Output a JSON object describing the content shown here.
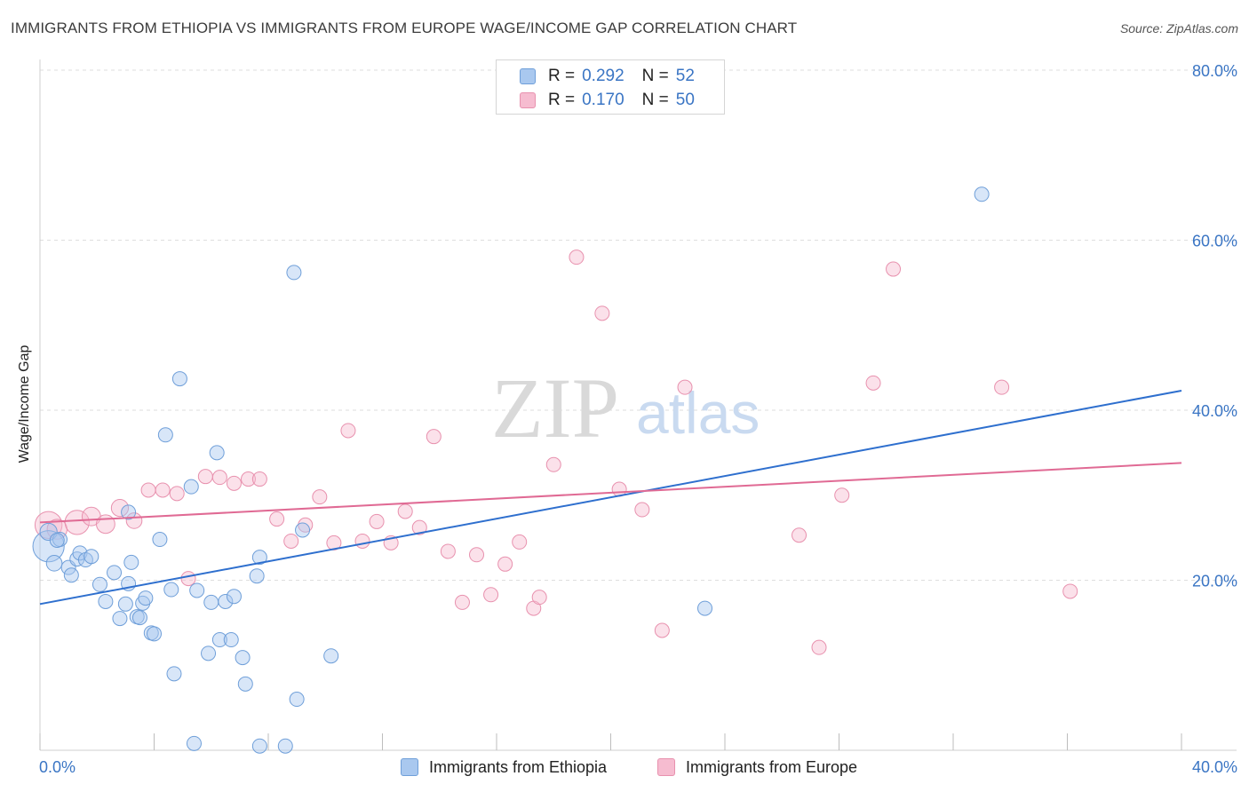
{
  "title": "IMMIGRANTS FROM ETHIOPIA VS IMMIGRANTS FROM EUROPE WAGE/INCOME GAP CORRELATION CHART",
  "source": "Source: ZipAtlas.com",
  "watermark": {
    "zip": "ZIP",
    "atlas": "atlas"
  },
  "legend": {
    "ethiopia": {
      "r_label": "R =",
      "r_value": "0.292",
      "n_label": "N =",
      "n_value": "52"
    },
    "europe": {
      "r_label": "R =",
      "r_value": "0.170",
      "n_label": "N =",
      "n_value": "50"
    }
  },
  "colors": {
    "ethiopia_fill": "#a9c8ef",
    "ethiopia_stroke": "#6f9fd9",
    "ethiopia_line": "#2e6fce",
    "europe_fill": "#f6bcd0",
    "europe_stroke": "#e891ae",
    "europe_line": "#e06a94",
    "tick": "#3a75c4",
    "grid": "#dedede"
  },
  "chart_data": {
    "type": "scatter",
    "title": "IMMIGRANTS FROM ETHIOPIA VS IMMIGRANTS FROM EUROPE WAGE/INCOME GAP CORRELATION CHART",
    "xlabel": "",
    "ylabel": "Wage/Income Gap",
    "xlim": [
      0,
      40
    ],
    "ylim": [
      0,
      80
    ],
    "x_tick_labels": [
      "0.0%",
      "40.0%"
    ],
    "y_ticks": [
      20,
      40,
      60,
      80
    ],
    "y_tick_labels": [
      "20.0%",
      "40.0%",
      "60.0%",
      "80.0%"
    ],
    "legend_position": "top-center",
    "series": [
      {
        "name": "Immigrants from Ethiopia",
        "r": 0.292,
        "n": 52,
        "trend": {
          "x": [
            0,
            40
          ],
          "y": [
            17.2,
            42.3
          ]
        },
        "points": [
          {
            "x": 0.3,
            "y": 24.0,
            "s": 2.2
          },
          {
            "x": 0.3,
            "y": 25.7,
            "s": 1.2
          },
          {
            "x": 0.5,
            "y": 22.0,
            "s": 1.1
          },
          {
            "x": 0.7,
            "y": 24.8,
            "s": 1.0
          },
          {
            "x": 0.6,
            "y": 24.7,
            "s": 1.0
          },
          {
            "x": 1.0,
            "y": 21.5,
            "s": 1.0
          },
          {
            "x": 1.1,
            "y": 20.6,
            "s": 1.0
          },
          {
            "x": 1.3,
            "y": 22.5,
            "s": 1.0
          },
          {
            "x": 1.4,
            "y": 23.2,
            "s": 1.0
          },
          {
            "x": 1.6,
            "y": 22.4,
            "s": 1.0
          },
          {
            "x": 1.8,
            "y": 22.8,
            "s": 1.0
          },
          {
            "x": 2.1,
            "y": 19.5,
            "s": 1.0
          },
          {
            "x": 2.3,
            "y": 17.5,
            "s": 1.0
          },
          {
            "x": 2.6,
            "y": 20.9,
            "s": 1.0
          },
          {
            "x": 2.8,
            "y": 15.5,
            "s": 1.0
          },
          {
            "x": 3.0,
            "y": 17.2,
            "s": 1.0
          },
          {
            "x": 3.1,
            "y": 28.0,
            "s": 1.0
          },
          {
            "x": 3.1,
            "y": 19.6,
            "s": 1.0
          },
          {
            "x": 3.2,
            "y": 22.1,
            "s": 1.0
          },
          {
            "x": 3.4,
            "y": 15.7,
            "s": 1.0
          },
          {
            "x": 3.6,
            "y": 17.3,
            "s": 1.0
          },
          {
            "x": 3.7,
            "y": 17.9,
            "s": 1.0
          },
          {
            "x": 3.9,
            "y": 13.8,
            "s": 1.0
          },
          {
            "x": 4.0,
            "y": 13.7,
            "s": 1.0
          },
          {
            "x": 4.2,
            "y": 24.8,
            "s": 1.0
          },
          {
            "x": 4.4,
            "y": 37.1,
            "s": 1.0
          },
          {
            "x": 4.6,
            "y": 18.9,
            "s": 1.0
          },
          {
            "x": 4.7,
            "y": 9.0,
            "s": 1.0
          },
          {
            "x": 4.9,
            "y": 43.7,
            "s": 1.0
          },
          {
            "x": 5.3,
            "y": 31.0,
            "s": 1.0
          },
          {
            "x": 5.5,
            "y": 18.8,
            "s": 1.0
          },
          {
            "x": 5.9,
            "y": 11.4,
            "s": 1.0
          },
          {
            "x": 6.0,
            "y": 17.4,
            "s": 1.0
          },
          {
            "x": 6.2,
            "y": 35.0,
            "s": 1.0
          },
          {
            "x": 6.3,
            "y": 13.0,
            "s": 1.0
          },
          {
            "x": 6.5,
            "y": 17.5,
            "s": 1.0
          },
          {
            "x": 6.7,
            "y": 13.0,
            "s": 1.0
          },
          {
            "x": 6.8,
            "y": 18.1,
            "s": 1.0
          },
          {
            "x": 7.1,
            "y": 10.9,
            "s": 1.0
          },
          {
            "x": 7.2,
            "y": 7.8,
            "s": 1.0
          },
          {
            "x": 7.6,
            "y": 20.5,
            "s": 1.0
          },
          {
            "x": 7.7,
            "y": 22.7,
            "s": 1.0
          },
          {
            "x": 8.9,
            "y": 56.2,
            "s": 1.0
          },
          {
            "x": 9.0,
            "y": 6.0,
            "s": 1.0
          },
          {
            "x": 9.2,
            "y": 25.9,
            "s": 1.0
          },
          {
            "x": 10.2,
            "y": 11.1,
            "s": 1.0
          },
          {
            "x": 5.4,
            "y": 0.8,
            "s": 1.0
          },
          {
            "x": 7.7,
            "y": 0.5,
            "s": 1.0
          },
          {
            "x": 8.6,
            "y": 0.5,
            "s": 1.0
          },
          {
            "x": 23.3,
            "y": 16.7,
            "s": 1.0
          },
          {
            "x": 33.0,
            "y": 65.4,
            "s": 1.0
          },
          {
            "x": 3.5,
            "y": 15.6,
            "s": 1.0
          }
        ]
      },
      {
        "name": "Immigrants from Europe",
        "r": 0.17,
        "n": 50,
        "trend": {
          "x": [
            0,
            40
          ],
          "y": [
            26.8,
            33.8
          ]
        },
        "points": [
          {
            "x": 0.3,
            "y": 26.5,
            "s": 1.9
          },
          {
            "x": 0.6,
            "y": 26.0,
            "s": 1.4
          },
          {
            "x": 1.3,
            "y": 26.8,
            "s": 1.7
          },
          {
            "x": 1.8,
            "y": 27.5,
            "s": 1.3
          },
          {
            "x": 2.3,
            "y": 26.6,
            "s": 1.3
          },
          {
            "x": 2.8,
            "y": 28.5,
            "s": 1.2
          },
          {
            "x": 3.3,
            "y": 27.0,
            "s": 1.1
          },
          {
            "x": 3.8,
            "y": 30.6,
            "s": 1.0
          },
          {
            "x": 4.3,
            "y": 30.6,
            "s": 1.0
          },
          {
            "x": 4.8,
            "y": 30.2,
            "s": 1.0
          },
          {
            "x": 5.2,
            "y": 20.2,
            "s": 1.0
          },
          {
            "x": 5.8,
            "y": 32.2,
            "s": 1.0
          },
          {
            "x": 6.3,
            "y": 32.1,
            "s": 1.0
          },
          {
            "x": 6.8,
            "y": 31.4,
            "s": 1.0
          },
          {
            "x": 7.3,
            "y": 31.9,
            "s": 1.0
          },
          {
            "x": 7.7,
            "y": 31.9,
            "s": 1.0
          },
          {
            "x": 8.3,
            "y": 27.2,
            "s": 1.0
          },
          {
            "x": 8.8,
            "y": 24.6,
            "s": 1.0
          },
          {
            "x": 9.3,
            "y": 26.5,
            "s": 1.0
          },
          {
            "x": 9.8,
            "y": 29.8,
            "s": 1.0
          },
          {
            "x": 10.3,
            "y": 24.4,
            "s": 1.0
          },
          {
            "x": 10.8,
            "y": 37.6,
            "s": 1.0
          },
          {
            "x": 11.3,
            "y": 24.6,
            "s": 1.0
          },
          {
            "x": 11.8,
            "y": 26.9,
            "s": 1.0
          },
          {
            "x": 12.3,
            "y": 24.4,
            "s": 1.0
          },
          {
            "x": 12.8,
            "y": 28.1,
            "s": 1.0
          },
          {
            "x": 13.3,
            "y": 26.2,
            "s": 1.0
          },
          {
            "x": 13.8,
            "y": 36.9,
            "s": 1.0
          },
          {
            "x": 14.3,
            "y": 23.4,
            "s": 1.0
          },
          {
            "x": 14.8,
            "y": 17.4,
            "s": 1.0
          },
          {
            "x": 15.3,
            "y": 23.0,
            "s": 1.0
          },
          {
            "x": 15.8,
            "y": 18.3,
            "s": 1.0
          },
          {
            "x": 16.3,
            "y": 21.9,
            "s": 1.0
          },
          {
            "x": 16.8,
            "y": 24.5,
            "s": 1.0
          },
          {
            "x": 17.3,
            "y": 16.7,
            "s": 1.0
          },
          {
            "x": 17.5,
            "y": 18.0,
            "s": 1.0
          },
          {
            "x": 18.0,
            "y": 33.6,
            "s": 1.0
          },
          {
            "x": 18.8,
            "y": 58.0,
            "s": 1.0
          },
          {
            "x": 19.7,
            "y": 51.4,
            "s": 1.0
          },
          {
            "x": 20.3,
            "y": 30.7,
            "s": 1.0
          },
          {
            "x": 21.1,
            "y": 28.3,
            "s": 1.0
          },
          {
            "x": 21.8,
            "y": 14.1,
            "s": 1.0
          },
          {
            "x": 22.6,
            "y": 42.7,
            "s": 1.0
          },
          {
            "x": 26.6,
            "y": 25.3,
            "s": 1.0
          },
          {
            "x": 27.3,
            "y": 12.1,
            "s": 1.0
          },
          {
            "x": 28.1,
            "y": 30.0,
            "s": 1.0
          },
          {
            "x": 29.2,
            "y": 43.2,
            "s": 1.0
          },
          {
            "x": 29.9,
            "y": 56.6,
            "s": 1.0
          },
          {
            "x": 33.7,
            "y": 42.7,
            "s": 1.0
          },
          {
            "x": 36.1,
            "y": 18.7,
            "s": 1.0
          }
        ]
      }
    ]
  }
}
